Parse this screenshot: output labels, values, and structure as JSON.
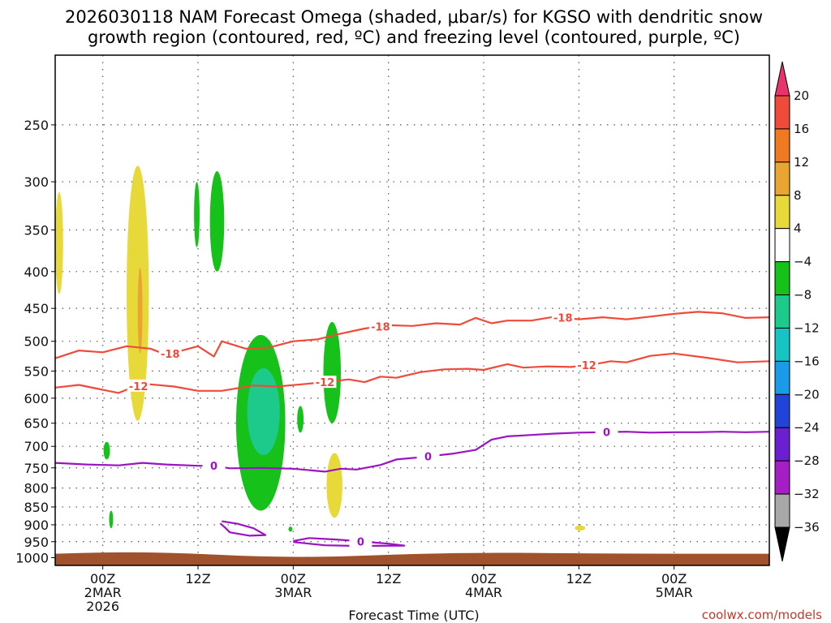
{
  "chart_data": {
    "type": "contour-timeheight",
    "title_line1": "2026030118 NAM Forecast Omega (shaded, μbar/s) for KGSO with dendritic snow",
    "title_line2": "growth region (contoured, red, ºC) and freezing level (contoured, purple, ºC)",
    "xlabel": "Forecast Time (UTC)",
    "ylabel": "",
    "credit": "coolwx.com/models",
    "x_range_hours": [
      0,
      90
    ],
    "y_range_hpa": [
      200,
      1025
    ],
    "y_ticks": [
      250,
      300,
      350,
      400,
      450,
      500,
      550,
      600,
      650,
      700,
      750,
      800,
      850,
      900,
      950,
      1000
    ],
    "x_ticks": [
      {
        "hour": 6,
        "lines": [
          "00Z",
          "2MAR",
          "2026"
        ]
      },
      {
        "hour": 18,
        "lines": [
          "12Z"
        ]
      },
      {
        "hour": 30,
        "lines": [
          "00Z",
          "3MAR"
        ]
      },
      {
        "hour": 42,
        "lines": [
          "12Z"
        ]
      },
      {
        "hour": 54,
        "lines": [
          "00Z",
          "4MAR"
        ]
      },
      {
        "hour": 66,
        "lines": [
          "12Z"
        ]
      },
      {
        "hour": 78,
        "lines": [
          "00Z",
          "5MAR"
        ]
      }
    ],
    "colorbar": {
      "levels": [
        20,
        16,
        12,
        8,
        4,
        -4,
        -8,
        -12,
        -16,
        -20,
        -24,
        -28,
        -32,
        -36
      ],
      "colors": [
        "#e8336b",
        "#ef4a3a",
        "#f07a22",
        "#e8a630",
        "#e8d93a",
        "#ffffff",
        "#16c11a",
        "#1ec98c",
        "#16c4c4",
        "#1a9be8",
        "#2144d8",
        "#6a1fd0",
        "#a41ec4",
        "#a8a8a8",
        "#000000"
      ]
    },
    "contours": [
      {
        "name": "-18 C",
        "color": "#ef4a3a",
        "label": "-18",
        "points": [
          [
            0,
            528
          ],
          [
            3,
            515
          ],
          [
            6,
            518
          ],
          [
            9,
            508
          ],
          [
            12,
            512
          ],
          [
            14,
            522
          ],
          [
            18,
            508
          ],
          [
            20,
            525
          ],
          [
            21,
            500
          ],
          [
            24,
            512
          ],
          [
            27,
            510
          ],
          [
            30,
            500
          ],
          [
            33,
            497
          ],
          [
            36,
            488
          ],
          [
            39,
            480
          ],
          [
            42,
            475
          ],
          [
            45,
            476
          ],
          [
            48,
            472
          ],
          [
            51,
            474
          ],
          [
            53,
            464
          ],
          [
            55,
            472
          ],
          [
            57,
            468
          ],
          [
            60,
            468
          ],
          [
            63,
            462
          ],
          [
            66,
            466
          ],
          [
            69,
            463
          ],
          [
            72,
            466
          ],
          [
            75,
            462
          ],
          [
            78,
            458
          ],
          [
            81,
            455
          ],
          [
            84,
            457
          ],
          [
            87,
            464
          ],
          [
            90,
            463
          ]
        ],
        "label_hours": [
          14.5,
          41,
          64
        ]
      },
      {
        "name": "-12 C",
        "color": "#ef4a3a",
        "label": "-12",
        "points": [
          [
            0,
            580
          ],
          [
            3,
            575
          ],
          [
            6,
            584
          ],
          [
            8,
            590
          ],
          [
            10,
            578
          ],
          [
            12,
            574
          ],
          [
            15,
            578
          ],
          [
            18,
            586
          ],
          [
            21,
            586
          ],
          [
            25,
            576
          ],
          [
            28,
            578
          ],
          [
            31,
            574
          ],
          [
            34,
            570
          ],
          [
            37,
            565
          ],
          [
            39,
            570
          ],
          [
            41,
            560
          ],
          [
            43,
            562
          ],
          [
            46,
            552
          ],
          [
            49,
            547
          ],
          [
            52,
            546
          ],
          [
            54,
            548
          ],
          [
            57,
            538
          ],
          [
            59,
            544
          ],
          [
            62,
            542
          ],
          [
            65,
            543
          ],
          [
            68,
            538
          ],
          [
            70,
            533
          ],
          [
            72,
            535
          ],
          [
            75,
            524
          ],
          [
            78,
            520
          ],
          [
            82,
            527
          ],
          [
            86,
            535
          ],
          [
            90,
            533
          ]
        ],
        "label_hours": [
          10.5,
          34,
          67
        ]
      },
      {
        "name": "0 C",
        "color": "#9a14c2",
        "label": "0",
        "points": [
          [
            0,
            738
          ],
          [
            4,
            742
          ],
          [
            8,
            744
          ],
          [
            11,
            738
          ],
          [
            14,
            742
          ],
          [
            18,
            745
          ],
          [
            20,
            745
          ],
          [
            22,
            751
          ],
          [
            26,
            750
          ],
          [
            30,
            752
          ],
          [
            34,
            759
          ],
          [
            36,
            752
          ],
          [
            38,
            754
          ],
          [
            41,
            743
          ],
          [
            43,
            730
          ],
          [
            46,
            725
          ],
          [
            50,
            717
          ],
          [
            53,
            708
          ],
          [
            55,
            685
          ],
          [
            57,
            678
          ],
          [
            60,
            675
          ],
          [
            63,
            672
          ],
          [
            66,
            670
          ],
          [
            69,
            669
          ],
          [
            72,
            668
          ],
          [
            75,
            670
          ],
          [
            78,
            669
          ],
          [
            81,
            669
          ],
          [
            84,
            668
          ],
          [
            87,
            669
          ],
          [
            90,
            668
          ]
        ],
        "label_hours": [
          20,
          47,
          69.5
        ]
      },
      {
        "name": "0 C (low)",
        "color": "#9a14c2",
        "label": "0",
        "points": [
          [
            30,
            948
          ],
          [
            32,
            939
          ],
          [
            35,
            943
          ],
          [
            38,
            948
          ],
          [
            40,
            952
          ],
          [
            42,
            956
          ],
          [
            44,
            962
          ],
          [
            38,
            963
          ],
          [
            34,
            961
          ],
          [
            30,
            951
          ]
        ],
        "label_hours": [
          38.5
        ]
      },
      {
        "name": "0 C (blob)",
        "color": "#9a14c2",
        "label": "",
        "points": [
          [
            21,
            890
          ],
          [
            23,
            897
          ],
          [
            25,
            910
          ],
          [
            26.5,
            930
          ],
          [
            24.5,
            932
          ],
          [
            22,
            922
          ],
          [
            21.5,
            910
          ],
          [
            20.8,
            896
          ]
        ],
        "label_hours": []
      }
    ],
    "shaded_regions": [
      {
        "value": 4,
        "color": "#e8d93a",
        "hour_range": [
          0,
          1
        ],
        "p_range": [
          310,
          430
        ]
      },
      {
        "value": 4,
        "color": "#e8d93a",
        "hour_range": [
          9,
          11.8
        ],
        "p_range": [
          285,
          645
        ]
      },
      {
        "value": 8,
        "color": "#e8a630",
        "hour_range": [
          10.4,
          11.0
        ],
        "p_range": [
          395,
          520
        ]
      },
      {
        "value": -4,
        "color": "#16c11a",
        "hour_range": [
          17.5,
          18.2
        ],
        "p_range": [
          300,
          370
        ]
      },
      {
        "value": -4,
        "color": "#16c11a",
        "hour_range": [
          19.5,
          21.3
        ],
        "p_range": [
          290,
          400
        ]
      },
      {
        "value": -4,
        "color": "#16c11a",
        "hour_range": [
          22.8,
          29
        ],
        "p_range": [
          490,
          860
        ]
      },
      {
        "value": -8,
        "color": "#1ec98c",
        "hour_range": [
          24.2,
          28.3
        ],
        "p_range": [
          545,
          720
        ]
      },
      {
        "value": -4,
        "color": "#16c11a",
        "hour_range": [
          33.8,
          36
        ],
        "p_range": [
          470,
          650
        ]
      },
      {
        "value": -4,
        "color": "#16c11a",
        "hour_range": [
          30.5,
          31.3
        ],
        "p_range": [
          615,
          670
        ]
      },
      {
        "value": -4,
        "color": "#16c11a",
        "hour_range": [
          6.1,
          6.9
        ],
        "p_range": [
          690,
          730
        ]
      },
      {
        "value": -4,
        "color": "#16c11a",
        "hour_range": [
          6.8,
          7.3
        ],
        "p_range": [
          860,
          910
        ]
      },
      {
        "value": 4,
        "color": "#e8d93a",
        "hour_range": [
          34.2,
          36.2
        ],
        "p_range": [
          715,
          880
        ]
      },
      {
        "value": -4,
        "color": "#16c11a",
        "hour_range": [
          29.4,
          29.9
        ],
        "p_range": [
          905,
          920
        ]
      },
      {
        "value": 4,
        "color": "#e8d93a",
        "hour_range": [
          65.5,
          66.8
        ],
        "p_range": [
          902,
          917
        ]
      }
    ],
    "surface_color": "#a0522d",
    "surface_p": 985
  }
}
